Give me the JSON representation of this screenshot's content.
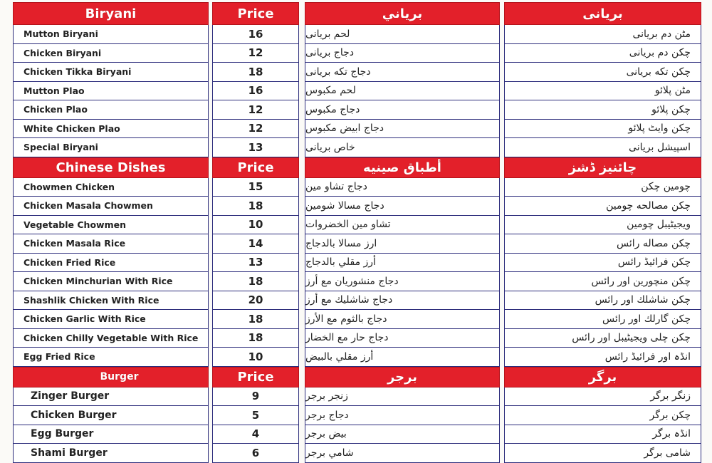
{
  "colors": {
    "header_bg": "#e3202a",
    "border": "#2d2d7c"
  },
  "sections": [
    {
      "header": [
        "Biryani",
        "Price",
        "برياني",
        "بریانی"
      ],
      "items": [
        [
          "Mutton Biryani",
          "16",
          "لحم بریانی",
          "مٹن دم بریانی"
        ],
        [
          "Chicken Biryani",
          "12",
          "دجاج بریانی",
          "چکن دم بریانی"
        ],
        [
          "Chicken Tikka Biryani",
          "18",
          "دجاج تکه بریانی",
          "چکن تکه بریانی"
        ],
        [
          "Mutton Plao",
          "16",
          "لحم مکبوس",
          "مٹن پلائو"
        ],
        [
          "Chicken Plao",
          "12",
          "دجاج مکبوس",
          "چکن پلائو"
        ],
        [
          "White Chicken Plao",
          "12",
          "دجاج ابیض مکبوس",
          "چکن وایٹ پلائو"
        ],
        [
          "Special Biryani",
          "13",
          "خاص بریانی",
          "اسپیشل بریانی"
        ]
      ]
    },
    {
      "header": [
        "Chinese Dishes",
        "Price",
        "أطباق صينيه",
        "چائنیز ڈشز"
      ],
      "items": [
        [
          "Chowmen Chicken",
          "15",
          "دجاج تشاو مین",
          "چومین چکن"
        ],
        [
          "Chicken Masala Chowmen",
          "18",
          "دجاج مسالا شومین",
          "چکن مصالحه چومین"
        ],
        [
          "Vegetable Chowmen",
          "10",
          "تشاو مین الخضروات",
          "ویجیٹیبل چومین"
        ],
        [
          "Chicken Masala Rice",
          "14",
          "ارز مسالا بالدجاج",
          "چکن مصاله رائس"
        ],
        [
          "Chicken Fried Rice",
          "13",
          "أرز مقلي بالدجاج",
          "چکن فرائیڈ رائس"
        ],
        [
          "Chicken Minchurian With Rice",
          "18",
          "دجاج منشوريان مع أرز",
          "چکن منچورین اور رائس"
        ],
        [
          "Shashlik Chicken With Rice",
          "20",
          "دجاج شاشليك مع أرز",
          "چکن شاشلك اور رائس"
        ],
        [
          "Chicken Garlic With Rice",
          "18",
          "دجاج بالثوم مع الأرز",
          "چکن گارلك اور رائس"
        ],
        [
          "Chicken Chilly Vegetable With Rice",
          "18",
          "دجاج حار مع الخضار",
          "چکن چلی ویجیٹیبل اور رائس"
        ],
        [
          "Egg Fried Rice",
          "10",
          "أرز مقلي بالبيض",
          "انڈہ اور فرائیڈ رائس"
        ]
      ]
    },
    {
      "header": [
        "Burger",
        "Price",
        "برجر",
        "برگر"
      ],
      "items": [
        [
          "Zinger Burger",
          "9",
          "زنجر برجر",
          "زنگر برگر"
        ],
        [
          "Chicken Burger",
          "5",
          "دجاج برجر",
          "چکن برگر"
        ],
        [
          "Egg Burger",
          "4",
          "بيض برجر",
          "انڈہ برگر"
        ],
        [
          "Shami Burger",
          "6",
          "شامي برجر",
          "شامی برگر"
        ]
      ]
    }
  ]
}
